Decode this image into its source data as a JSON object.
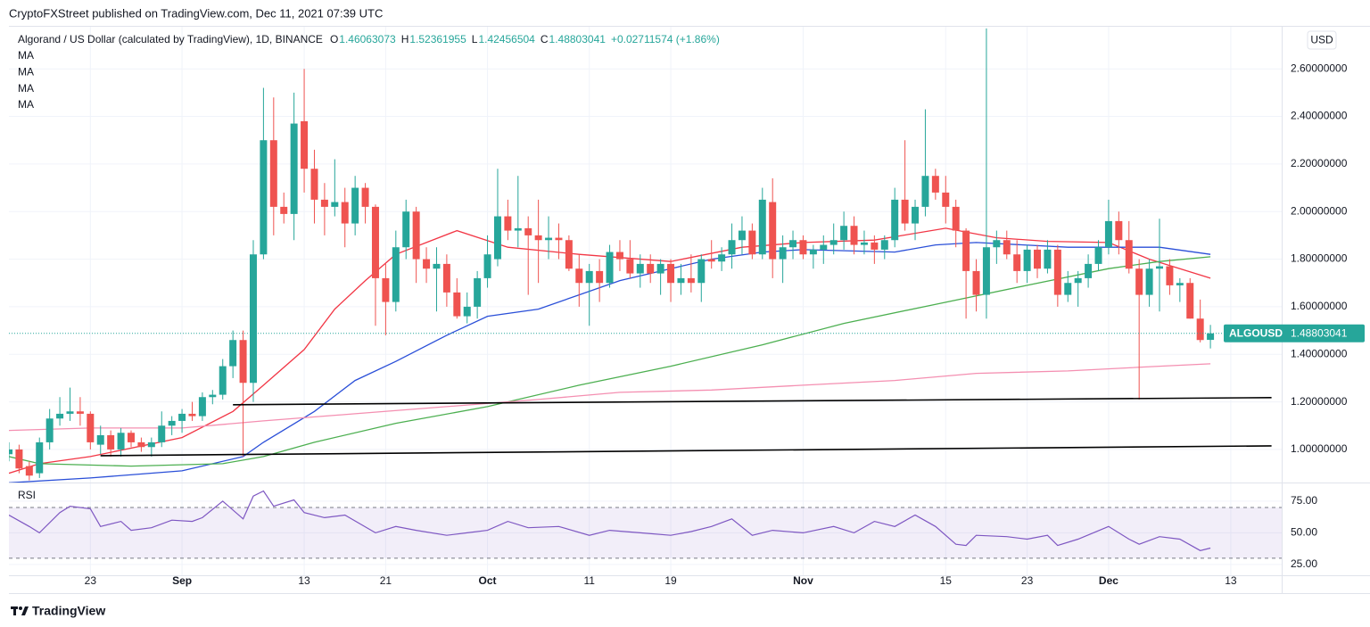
{
  "chart_data": {
    "type": "candlestick",
    "publisher": "CryptoFXStreet published on TradingView.com, Dec 11, 2021 07:39 UTC",
    "title": "Algorand / US Dollar (calculated by TradingView), 1D, BINANCE",
    "ohlc_labels": [
      "O",
      "H",
      "L",
      "C"
    ],
    "change": "+0.02711574 (+1.86%)",
    "currency": "USD",
    "symbol": "ALGOUSD",
    "brand": "TradingView",
    "up_color": "#26a69a",
    "down_color": "#ef5350",
    "x": [
      "2021-08-15",
      "2021-08-16",
      "2021-08-17",
      "2021-08-18",
      "2021-08-19",
      "2021-08-20",
      "2021-08-21",
      "2021-08-22",
      "2021-08-23",
      "2021-08-24",
      "2021-08-25",
      "2021-08-26",
      "2021-08-27",
      "2021-08-28",
      "2021-08-29",
      "2021-08-30",
      "2021-08-31",
      "2021-09-01",
      "2021-09-02",
      "2021-09-03",
      "2021-09-04",
      "2021-09-05",
      "2021-09-06",
      "2021-09-07",
      "2021-09-08",
      "2021-09-09",
      "2021-09-10",
      "2021-09-11",
      "2021-09-12",
      "2021-09-13",
      "2021-09-14",
      "2021-09-15",
      "2021-09-16",
      "2021-09-17",
      "2021-09-18",
      "2021-09-19",
      "2021-09-20",
      "2021-09-21",
      "2021-09-22",
      "2021-09-23",
      "2021-09-24",
      "2021-09-25",
      "2021-09-26",
      "2021-09-27",
      "2021-09-28",
      "2021-09-29",
      "2021-09-30",
      "2021-10-01",
      "2021-10-02",
      "2021-10-03",
      "2021-10-04",
      "2021-10-05",
      "2021-10-06",
      "2021-10-07",
      "2021-10-08",
      "2021-10-09",
      "2021-10-10",
      "2021-10-11",
      "2021-10-12",
      "2021-10-13",
      "2021-10-14",
      "2021-10-15",
      "2021-10-16",
      "2021-10-17",
      "2021-10-18",
      "2021-10-19",
      "2021-10-20",
      "2021-10-21",
      "2021-10-22",
      "2021-10-23",
      "2021-10-24",
      "2021-10-25",
      "2021-10-26",
      "2021-10-27",
      "2021-10-28",
      "2021-10-29",
      "2021-10-30",
      "2021-10-31",
      "2021-11-01",
      "2021-11-02",
      "2021-11-03",
      "2021-11-04",
      "2021-11-05",
      "2021-11-06",
      "2021-11-07",
      "2021-11-08",
      "2021-11-09",
      "2021-11-10",
      "2021-11-11",
      "2021-11-12",
      "2021-11-13",
      "2021-11-14",
      "2021-11-15",
      "2021-11-16",
      "2021-11-17",
      "2021-11-18",
      "2021-11-19",
      "2021-11-20",
      "2021-11-21",
      "2021-11-22",
      "2021-11-23",
      "2021-11-24",
      "2021-11-25",
      "2021-11-26",
      "2021-11-27",
      "2021-11-28",
      "2021-11-29",
      "2021-11-30",
      "2021-12-01",
      "2021-12-02",
      "2021-12-03",
      "2021-12-04",
      "2021-12-05",
      "2021-12-06",
      "2021-12-07",
      "2021-12-08",
      "2021-12-09",
      "2021-12-10",
      "2021-12-11"
    ],
    "open": [
      0.98,
      1.0,
      0.93,
      0.9,
      1.03,
      1.13,
      1.15,
      1.16,
      1.15,
      1.02,
      1.06,
      1.0,
      1.07,
      1.03,
      1.01,
      1.03,
      1.1,
      1.12,
      1.15,
      1.14,
      1.22,
      1.23,
      1.35,
      1.46,
      1.28,
      1.82,
      2.3,
      2.02,
      1.99,
      2.38,
      2.18,
      2.05,
      2.02,
      2.04,
      1.95,
      2.1,
      2.02,
      1.72,
      1.62,
      1.85,
      2.0,
      1.8,
      1.76,
      1.78,
      1.66,
      1.56,
      1.6,
      1.72,
      1.8,
      1.98,
      1.92,
      1.93,
      1.9,
      1.88,
      1.89,
      1.88,
      1.76,
      1.7,
      1.75,
      1.7,
      1.83,
      1.8,
      1.74,
      1.78,
      1.74,
      1.78,
      1.7,
      1.72,
      1.7,
      1.8,
      1.79,
      1.82,
      1.88,
      1.92,
      1.82,
      2.04,
      1.8,
      1.85,
      1.88,
      1.82,
      1.84,
      1.86,
      1.88,
      1.94,
      1.86,
      1.87,
      1.84,
      1.88,
      2.05,
      1.95,
      2.02,
      2.15,
      2.08,
      2.02,
      1.92,
      1.75,
      1.65,
      1.85,
      1.88,
      1.82,
      1.75,
      1.84,
      1.76,
      1.84,
      1.65,
      1.7,
      1.72,
      1.78,
      1.85,
      1.96,
      1.88,
      1.76,
      1.65,
      1.76,
      1.77,
      1.69,
      1.7,
      1.55,
      1.46063073
    ],
    "high": [
      1.03,
      1.02,
      0.95,
      1.05,
      1.17,
      1.22,
      1.26,
      1.22,
      1.16,
      1.1,
      1.08,
      1.09,
      1.08,
      1.05,
      1.05,
      1.16,
      1.14,
      1.17,
      1.2,
      1.24,
      1.25,
      1.38,
      1.5,
      1.5,
      1.88,
      2.52,
      2.48,
      2.08,
      2.5,
      2.6,
      2.26,
      2.12,
      2.22,
      2.1,
      2.15,
      2.12,
      2.03,
      1.78,
      1.92,
      2.05,
      2.02,
      1.85,
      1.85,
      1.82,
      1.72,
      1.66,
      1.75,
      1.9,
      2.18,
      2.05,
      2.15,
      1.98,
      2.05,
      1.98,
      1.95,
      1.9,
      1.82,
      1.78,
      1.8,
      1.86,
      1.88,
      1.88,
      1.82,
      1.82,
      1.8,
      1.8,
      1.78,
      1.82,
      1.82,
      1.88,
      1.85,
      1.95,
      1.98,
      1.95,
      2.1,
      2.14,
      1.9,
      1.92,
      1.9,
      1.86,
      1.9,
      1.95,
      2.0,
      1.98,
      1.92,
      1.9,
      1.9,
      2.1,
      2.3,
      2.05,
      2.43,
      2.18,
      2.15,
      2.05,
      1.93,
      1.8,
      2.77,
      1.92,
      1.92,
      1.88,
      1.86,
      1.86,
      1.88,
      1.86,
      1.75,
      1.75,
      1.82,
      1.88,
      2.05,
      2.0,
      1.96,
      1.8,
      1.8,
      1.97,
      1.8,
      1.72,
      1.72,
      1.63,
      1.52361955
    ],
    "low": [
      0.95,
      0.9,
      0.87,
      0.88,
      1.0,
      1.1,
      1.12,
      1.1,
      1.0,
      0.98,
      0.97,
      0.97,
      1.01,
      0.99,
      0.97,
      1.01,
      1.06,
      1.07,
      1.12,
      1.12,
      1.19,
      1.21,
      1.3,
      0.97,
      1.2,
      1.8,
      1.9,
      1.95,
      1.88,
      2.08,
      1.95,
      1.9,
      1.98,
      1.85,
      1.9,
      1.95,
      1.52,
      1.48,
      1.58,
      1.8,
      1.7,
      1.7,
      1.58,
      1.6,
      1.55,
      1.53,
      1.55,
      1.68,
      1.77,
      1.88,
      1.85,
      1.65,
      1.7,
      1.8,
      1.8,
      1.75,
      1.6,
      1.52,
      1.62,
      1.68,
      1.75,
      1.72,
      1.68,
      1.7,
      1.65,
      1.62,
      1.65,
      1.66,
      1.62,
      1.76,
      1.75,
      1.76,
      1.82,
      1.8,
      1.8,
      1.72,
      1.7,
      1.8,
      1.8,
      1.76,
      1.78,
      1.82,
      1.84,
      1.82,
      1.82,
      1.78,
      1.8,
      1.85,
      1.92,
      1.88,
      1.98,
      2.05,
      1.95,
      1.85,
      1.55,
      1.58,
      1.55,
      1.78,
      1.8,
      1.7,
      1.7,
      1.72,
      1.74,
      1.6,
      1.62,
      1.6,
      1.68,
      1.75,
      1.82,
      1.82,
      1.74,
      1.21,
      1.6,
      1.58,
      1.65,
      1.62,
      1.55,
      1.45,
      1.42456504
    ],
    "close": [
      1.0,
      0.92,
      0.89,
      1.03,
      1.13,
      1.15,
      1.16,
      1.15,
      1.03,
      1.06,
      1.0,
      1.07,
      1.03,
      1.01,
      1.03,
      1.1,
      1.12,
      1.15,
      1.14,
      1.22,
      1.23,
      1.35,
      1.46,
      1.28,
      1.82,
      2.3,
      2.02,
      1.99,
      2.37,
      2.18,
      2.05,
      2.02,
      2.04,
      1.95,
      2.1,
      2.02,
      1.72,
      1.62,
      1.85,
      2.0,
      1.8,
      1.76,
      1.78,
      1.66,
      1.56,
      1.6,
      1.72,
      1.82,
      1.98,
      1.92,
      1.93,
      1.9,
      1.88,
      1.89,
      1.88,
      1.76,
      1.7,
      1.75,
      1.7,
      1.83,
      1.8,
      1.74,
      1.78,
      1.74,
      1.78,
      1.7,
      1.72,
      1.7,
      1.8,
      1.79,
      1.82,
      1.88,
      1.92,
      1.82,
      2.05,
      1.8,
      1.85,
      1.88,
      1.82,
      1.84,
      1.86,
      1.88,
      1.94,
      1.86,
      1.87,
      1.84,
      1.88,
      2.05,
      1.95,
      2.02,
      2.15,
      2.08,
      2.02,
      1.92,
      1.75,
      1.65,
      1.85,
      1.88,
      1.82,
      1.75,
      1.84,
      1.76,
      1.84,
      1.65,
      1.7,
      1.72,
      1.78,
      1.85,
      1.96,
      1.88,
      1.76,
      1.65,
      1.76,
      1.77,
      1.69,
      1.7,
      1.55,
      1.46,
      1.48803041
    ],
    "xlim": [
      "2021-08-15",
      "2021-12-18"
    ],
    "xticks": [
      {
        "value": "2021-08-23",
        "label": "23"
      },
      {
        "value": "2021-09-01",
        "label": "Sep"
      },
      {
        "value": "2021-09-13",
        "label": "13"
      },
      {
        "value": "2021-09-21",
        "label": "21"
      },
      {
        "value": "2021-10-01",
        "label": "Oct"
      },
      {
        "value": "2021-10-11",
        "label": "11"
      },
      {
        "value": "2021-10-19",
        "label": "19"
      },
      {
        "value": "2021-11-01",
        "label": "Nov"
      },
      {
        "value": "2021-11-15",
        "label": "15"
      },
      {
        "value": "2021-11-23",
        "label": "23"
      },
      {
        "value": "2021-12-01",
        "label": "Dec"
      },
      {
        "value": "2021-12-13",
        "label": "13"
      }
    ],
    "ylim": [
      0.861,
      2.777
    ],
    "yticks": [
      {
        "value": 1.0,
        "label": "1.00000000"
      },
      {
        "value": 1.2,
        "label": "1.20000000"
      },
      {
        "value": 1.4,
        "label": "1.40000000"
      },
      {
        "value": 1.6,
        "label": "1.60000000"
      },
      {
        "value": 1.8,
        "label": "1.80000000"
      },
      {
        "value": 2.0,
        "label": "2.00000000"
      },
      {
        "value": 2.2,
        "label": "2.20000000"
      },
      {
        "value": 2.4,
        "label": "2.40000000"
      },
      {
        "value": 2.6,
        "label": "2.60000000"
      }
    ],
    "grid": true,
    "series": [
      {
        "name": "MA",
        "color": "#f23645",
        "x": [
          "2021-08-15",
          "2021-08-18",
          "2021-08-23",
          "2021-09-01",
          "2021-09-06",
          "2021-09-09",
          "2021-09-13",
          "2021-09-16",
          "2021-09-19",
          "2021-09-22",
          "2021-09-28",
          "2021-10-03",
          "2021-10-10",
          "2021-10-19",
          "2021-10-26",
          "2021-11-01",
          "2021-11-08",
          "2021-11-15",
          "2021-11-20",
          "2021-11-25",
          "2021-12-01",
          "2021-12-05",
          "2021-12-11"
        ],
        "values": [
          0.9,
          0.94,
          0.97,
          1.05,
          1.16,
          1.27,
          1.42,
          1.59,
          1.71,
          1.82,
          1.92,
          1.85,
          1.82,
          1.79,
          1.85,
          1.87,
          1.88,
          1.93,
          1.89,
          1.875,
          1.87,
          1.8,
          1.72
        ]
      },
      {
        "name": "MA",
        "color": "#2a4fd8",
        "x": [
          "2021-08-15",
          "2021-08-23",
          "2021-09-01",
          "2021-09-07",
          "2021-09-09",
          "2021-09-14",
          "2021-09-18",
          "2021-09-22",
          "2021-09-27",
          "2021-10-01",
          "2021-10-06",
          "2021-10-10",
          "2021-10-14",
          "2021-10-19",
          "2021-10-23",
          "2021-10-28",
          "2021-11-01",
          "2021-11-10",
          "2021-11-14",
          "2021-11-18",
          "2021-11-27",
          "2021-12-06",
          "2021-12-11"
        ],
        "values": [
          0.86,
          0.88,
          0.91,
          0.97,
          1.03,
          1.16,
          1.29,
          1.37,
          1.48,
          1.56,
          1.59,
          1.65,
          1.71,
          1.76,
          1.8,
          1.83,
          1.84,
          1.83,
          1.86,
          1.87,
          1.85,
          1.85,
          1.82
        ]
      },
      {
        "name": "MA",
        "color": "#4caf50",
        "x": [
          "2021-08-15",
          "2021-08-18",
          "2021-08-27",
          "2021-09-05",
          "2021-09-09",
          "2021-09-14",
          "2021-09-22",
          "2021-10-01",
          "2021-10-10",
          "2021-10-19",
          "2021-10-28",
          "2021-11-05",
          "2021-11-14",
          "2021-11-23",
          "2021-12-01",
          "2021-12-06",
          "2021-12-11"
        ],
        "values": [
          0.97,
          0.94,
          0.93,
          0.94,
          0.97,
          1.03,
          1.11,
          1.18,
          1.27,
          1.35,
          1.44,
          1.53,
          1.61,
          1.69,
          1.76,
          1.79,
          1.81
        ]
      },
      {
        "name": "MA",
        "color": "#f48fb1",
        "x": [
          "2021-08-15",
          "2021-08-23",
          "2021-09-01",
          "2021-09-09",
          "2021-09-18",
          "2021-09-27",
          "2021-10-06",
          "2021-10-14",
          "2021-10-23",
          "2021-11-01",
          "2021-11-10",
          "2021-11-18",
          "2021-11-27",
          "2021-12-06",
          "2021-12-11"
        ],
        "values": [
          1.08,
          1.09,
          1.09,
          1.12,
          1.15,
          1.18,
          1.21,
          1.24,
          1.25,
          1.27,
          1.29,
          1.32,
          1.33,
          1.35,
          1.36
        ]
      }
    ],
    "lines": [
      {
        "color": "#000000",
        "x": [
          "2021-09-06",
          "2021-12-17"
        ],
        "values": [
          1.188,
          1.218
        ]
      },
      {
        "color": "#000000",
        "x": [
          "2021-08-24",
          "2021-12-17"
        ],
        "values": [
          0.974,
          1.015
        ]
      }
    ],
    "rsi": {
      "name": "RSI",
      "color": "#7e57c2",
      "x": [
        "2021-08-15",
        "2021-08-17",
        "2021-08-18",
        "2021-08-20",
        "2021-08-21",
        "2021-08-23",
        "2021-08-24",
        "2021-08-26",
        "2021-08-27",
        "2021-08-29",
        "2021-08-31",
        "2021-09-02",
        "2021-09-03",
        "2021-09-05",
        "2021-09-07",
        "2021-09-08",
        "2021-09-09",
        "2021-09-10",
        "2021-09-12",
        "2021-09-13",
        "2021-09-15",
        "2021-09-17",
        "2021-09-20",
        "2021-09-22",
        "2021-09-24",
        "2021-09-27",
        "2021-09-29",
        "2021-10-01",
        "2021-10-03",
        "2021-10-05",
        "2021-10-08",
        "2021-10-11",
        "2021-10-13",
        "2021-10-16",
        "2021-10-19",
        "2021-10-21",
        "2021-10-23",
        "2021-10-25",
        "2021-10-27",
        "2021-10-29",
        "2021-11-01",
        "2021-11-04",
        "2021-11-06",
        "2021-11-08",
        "2021-11-10",
        "2021-11-12",
        "2021-11-14",
        "2021-11-16",
        "2021-11-17",
        "2021-11-18",
        "2021-11-21",
        "2021-11-23",
        "2021-11-25",
        "2021-11-26",
        "2021-11-28",
        "2021-12-01",
        "2021-12-03",
        "2021-12-04",
        "2021-12-06",
        "2021-12-08",
        "2021-12-10",
        "2021-12-11"
      ],
      "values": [
        64,
        55,
        50,
        66,
        71,
        69,
        55,
        59,
        52,
        54,
        60,
        59,
        62,
        75,
        61,
        79,
        83,
        71,
        76,
        66,
        62,
        64,
        50,
        55,
        52,
        48,
        50,
        52,
        59,
        54,
        55,
        48,
        52,
        50,
        48,
        51,
        55,
        61,
        48,
        52,
        50,
        55,
        50,
        59,
        55,
        64,
        55,
        41,
        40,
        48,
        47,
        45,
        48,
        40,
        45,
        55,
        45,
        41,
        47,
        45,
        36,
        38
      ],
      "ylim": [
        16.5,
        89
      ],
      "yticks": [
        {
          "value": 75,
          "label": "75.00"
        },
        {
          "value": 50,
          "label": "50.00"
        },
        {
          "value": 25,
          "label": "25.00"
        }
      ],
      "band": [
        30,
        70
      ]
    }
  }
}
